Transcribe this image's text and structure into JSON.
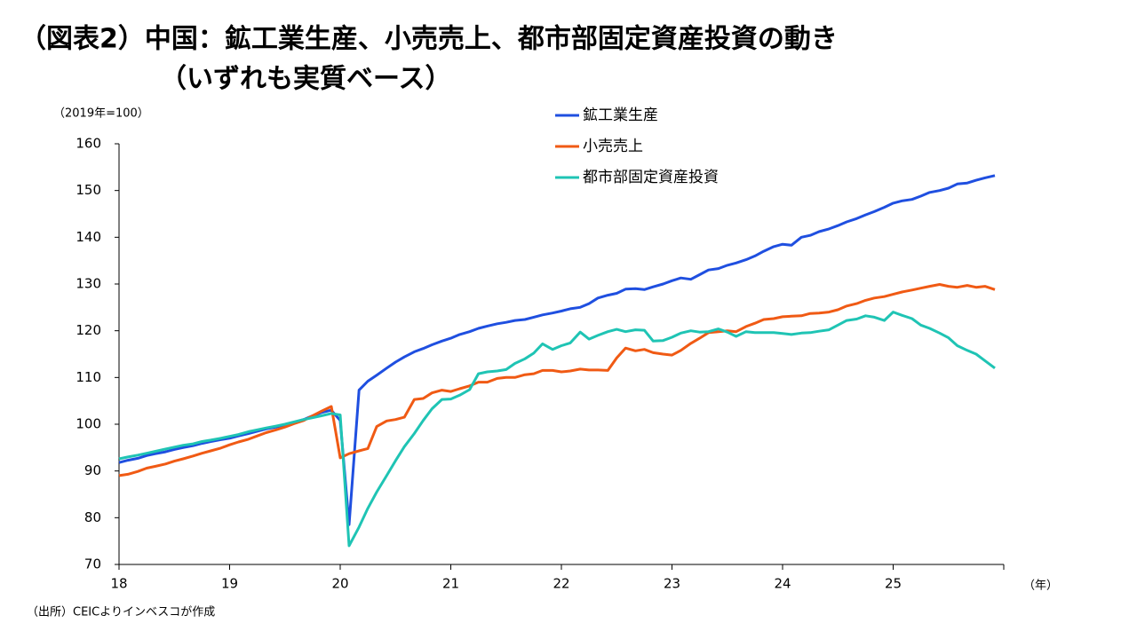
{
  "chart_data": {
    "type": "line",
    "title": "（図表2）中国：鉱工業生産、小売売上、都市部固定資産投資の動き",
    "subtitle": "（いずれも実質ベース）",
    "y_label": "（2019年=100）",
    "x_label": "（年）",
    "source": "（出所）CEICよりインベスコが作成",
    "x": [
      18.0,
      18.08,
      18.17,
      18.25,
      18.33,
      18.42,
      18.5,
      18.58,
      18.67,
      18.75,
      18.83,
      18.92,
      19.0,
      19.08,
      19.17,
      19.25,
      19.33,
      19.42,
      19.5,
      19.58,
      19.67,
      19.75,
      19.83,
      19.92,
      20.0,
      20.08,
      20.17,
      20.25,
      20.33,
      20.42,
      20.5,
      20.58,
      20.67,
      20.75,
      20.83,
      20.92,
      21.0,
      21.08,
      21.17,
      21.25,
      21.33,
      21.42,
      21.5,
      21.58,
      21.67,
      21.75,
      21.83,
      21.92,
      22.0,
      22.08,
      22.17,
      22.25,
      22.33,
      22.42,
      22.5,
      22.58,
      22.67,
      22.75,
      22.83,
      22.92,
      23.0,
      23.08,
      23.17,
      23.25,
      23.33,
      23.42,
      23.5,
      23.58,
      23.67,
      23.75,
      23.83,
      23.92,
      24.0,
      24.08,
      24.17,
      24.25,
      24.33,
      24.42,
      24.5,
      24.58,
      24.67,
      24.75,
      24.83,
      24.92,
      25.0,
      25.08,
      25.17,
      25.25,
      25.33,
      25.42,
      25.5,
      25.58,
      25.67,
      25.75,
      25.83,
      25.92
    ],
    "series": [
      {
        "name": "鉱工業生産",
        "color": "#1f4fe0",
        "values": [
          91.8,
          92.3,
          92.7,
          93.3,
          93.7,
          94.1,
          94.6,
          95.0,
          95.4,
          95.9,
          96.3,
          96.7,
          97.0,
          97.5,
          98.0,
          98.5,
          99.0,
          99.4,
          99.9,
          100.4,
          101.0,
          101.8,
          102.5,
          103.0,
          100.8,
          78.5,
          107.3,
          109.2,
          110.5,
          112.0,
          113.3,
          114.4,
          115.5,
          116.2,
          117.0,
          117.8,
          118.4,
          119.2,
          119.8,
          120.5,
          121.0,
          121.5,
          121.8,
          122.2,
          122.4,
          122.9,
          123.4,
          123.8,
          124.2,
          124.7,
          125.0,
          125.8,
          127.0,
          127.6,
          128.0,
          128.9,
          129.0,
          128.8,
          129.4,
          130.0,
          130.7,
          131.3,
          131.0,
          132.0,
          133.0,
          133.3,
          134.0,
          134.5,
          135.2,
          136.0,
          137.0,
          138.0,
          138.5,
          138.3,
          140.0,
          140.4,
          141.2,
          141.8,
          142.5,
          143.3,
          144.0,
          144.8,
          145.5,
          146.4,
          147.3,
          147.8,
          148.1,
          148.8,
          149.6,
          150.0,
          150.5,
          151.4,
          151.6,
          152.2,
          152.7,
          153.2
        ]
      },
      {
        "name": "小売売上",
        "color": "#f05a14",
        "values": [
          89.0,
          89.3,
          89.9,
          90.6,
          91.0,
          91.5,
          92.1,
          92.6,
          93.2,
          93.8,
          94.3,
          94.9,
          95.6,
          96.2,
          96.8,
          97.5,
          98.2,
          98.8,
          99.4,
          100.1,
          100.8,
          101.8,
          102.8,
          103.8,
          92.8,
          93.7,
          94.3,
          94.8,
          99.5,
          100.7,
          101.0,
          101.5,
          105.3,
          105.5,
          106.7,
          107.3,
          107.0,
          107.6,
          108.2,
          109.0,
          109.0,
          109.8,
          110.0,
          110.0,
          110.6,
          110.8,
          111.5,
          111.5,
          111.2,
          111.4,
          111.8,
          111.6,
          111.6,
          111.5,
          114.2,
          116.3,
          115.7,
          116.0,
          115.3,
          115.0,
          114.8,
          115.8,
          117.3,
          118.4,
          119.6,
          119.8,
          120.0,
          119.8,
          120.9,
          121.6,
          122.4,
          122.6,
          123.0,
          123.1,
          123.2,
          123.7,
          123.8,
          124.0,
          124.5,
          125.3,
          125.8,
          126.5,
          127.0,
          127.3,
          127.8,
          128.3,
          128.7,
          129.1,
          129.5,
          129.9,
          129.5,
          129.3,
          129.7,
          129.3,
          129.5,
          128.8
        ]
      },
      {
        "name": "都市部固定資産投資",
        "color": "#1fc4b4",
        "values": [
          92.6,
          93.0,
          93.4,
          93.8,
          94.2,
          94.7,
          95.1,
          95.5,
          95.8,
          96.3,
          96.6,
          97.0,
          97.4,
          97.8,
          98.4,
          98.8,
          99.2,
          99.6,
          100.0,
          100.5,
          101.0,
          101.4,
          101.8,
          102.3,
          102.0,
          74.0,
          78.0,
          82.0,
          85.5,
          89.0,
          92.2,
          95.2,
          98.0,
          100.8,
          103.3,
          105.3,
          105.4,
          106.2,
          107.4,
          110.8,
          111.2,
          111.4,
          111.7,
          113.0,
          114.0,
          115.2,
          117.2,
          116.0,
          116.8,
          117.4,
          119.7,
          118.2,
          119.0,
          119.8,
          120.3,
          119.8,
          120.2,
          120.1,
          117.8,
          117.9,
          118.6,
          119.5,
          120.0,
          119.7,
          119.8,
          120.4,
          119.7,
          118.8,
          119.8,
          119.6,
          119.6,
          119.6,
          119.4,
          119.2,
          119.5,
          119.6,
          119.9,
          120.2,
          121.2,
          122.2,
          122.5,
          123.2,
          122.9,
          122.2,
          124.0,
          123.3,
          122.6,
          121.2,
          120.5,
          119.5,
          118.5,
          116.8,
          115.8,
          115.0,
          113.6,
          112.0
        ]
      }
    ],
    "xlim": [
      18,
      26
    ],
    "xticks": [
      18,
      19,
      20,
      21,
      22,
      23,
      24,
      25
    ],
    "ylim": [
      70,
      160
    ],
    "yticks": [
      70,
      80,
      90,
      100,
      110,
      120,
      130,
      140,
      150,
      160
    ],
    "grid": false
  }
}
